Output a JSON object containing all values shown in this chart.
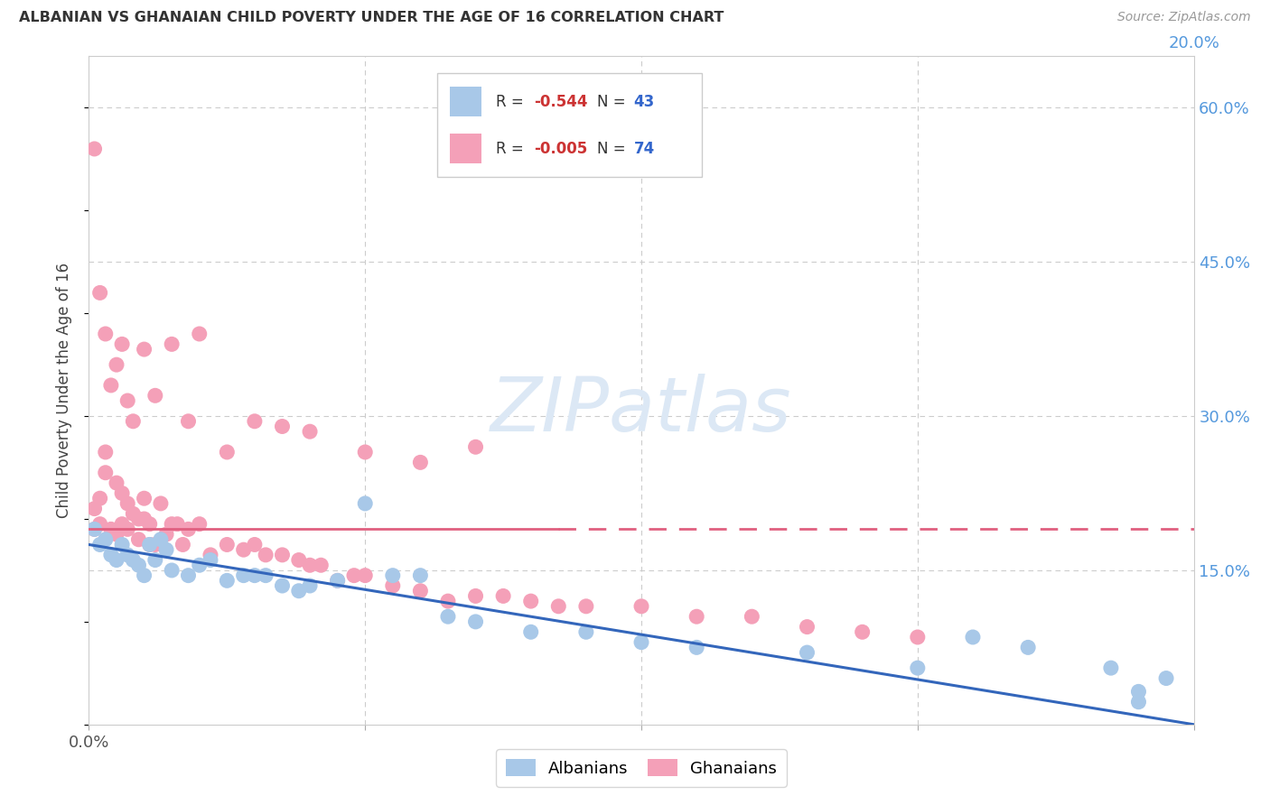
{
  "title": "ALBANIAN VS GHANAIAN CHILD POVERTY UNDER THE AGE OF 16 CORRELATION CHART",
  "source": "Source: ZipAtlas.com",
  "ylabel": "Child Poverty Under the Age of 16",
  "ytick_values": [
    0.15,
    0.3,
    0.45,
    0.6
  ],
  "ytick_labels": [
    "15.0%",
    "30.0%",
    "45.0%",
    "60.0%"
  ],
  "xlim": [
    0,
    0.2
  ],
  "ylim": [
    0,
    0.65
  ],
  "albanian_color": "#a8c8e8",
  "ghanaian_color": "#f4a0b8",
  "albanian_line_color": "#3366bb",
  "ghanaian_line_color": "#e06080",
  "grid_color": "#cccccc",
  "right_axis_color": "#5599dd",
  "watermark_color": "#dce8f5",
  "legend_R_color": "#cc3333",
  "legend_N_color": "#3366cc",
  "alb_R": -0.544,
  "alb_N": 43,
  "gha_R": -0.005,
  "gha_N": 74,
  "albanian_x": [
    0.001,
    0.002,
    0.003,
    0.004,
    0.005,
    0.006,
    0.007,
    0.008,
    0.009,
    0.01,
    0.011,
    0.012,
    0.013,
    0.014,
    0.015,
    0.018,
    0.02,
    0.022,
    0.025,
    0.028,
    0.03,
    0.032,
    0.035,
    0.038,
    0.04,
    0.045,
    0.05,
    0.055,
    0.06,
    0.065,
    0.07,
    0.08,
    0.09,
    0.1,
    0.11,
    0.13,
    0.15,
    0.16,
    0.17,
    0.185,
    0.19,
    0.19,
    0.195
  ],
  "albanian_y": [
    0.19,
    0.175,
    0.18,
    0.165,
    0.16,
    0.175,
    0.165,
    0.16,
    0.155,
    0.145,
    0.175,
    0.16,
    0.18,
    0.17,
    0.15,
    0.145,
    0.155,
    0.16,
    0.14,
    0.145,
    0.145,
    0.145,
    0.135,
    0.13,
    0.135,
    0.14,
    0.215,
    0.145,
    0.145,
    0.105,
    0.1,
    0.09,
    0.09,
    0.08,
    0.075,
    0.07,
    0.055,
    0.085,
    0.075,
    0.055,
    0.022,
    0.032,
    0.045
  ],
  "ghanaian_x": [
    0.001,
    0.001,
    0.002,
    0.002,
    0.003,
    0.003,
    0.004,
    0.005,
    0.005,
    0.006,
    0.006,
    0.007,
    0.007,
    0.008,
    0.009,
    0.009,
    0.01,
    0.01,
    0.011,
    0.011,
    0.012,
    0.013,
    0.014,
    0.015,
    0.016,
    0.017,
    0.018,
    0.02,
    0.022,
    0.025,
    0.028,
    0.03,
    0.032,
    0.035,
    0.038,
    0.04,
    0.042,
    0.045,
    0.048,
    0.05,
    0.055,
    0.06,
    0.065,
    0.07,
    0.075,
    0.08,
    0.085,
    0.09,
    0.1,
    0.11,
    0.12,
    0.13,
    0.14,
    0.15,
    0.001,
    0.002,
    0.003,
    0.004,
    0.005,
    0.006,
    0.007,
    0.008,
    0.01,
    0.012,
    0.015,
    0.018,
    0.02,
    0.025,
    0.03,
    0.035,
    0.04,
    0.05,
    0.06,
    0.07
  ],
  "ghanaian_y": [
    0.19,
    0.21,
    0.195,
    0.22,
    0.265,
    0.245,
    0.19,
    0.185,
    0.235,
    0.195,
    0.225,
    0.19,
    0.215,
    0.205,
    0.18,
    0.2,
    0.2,
    0.22,
    0.175,
    0.195,
    0.175,
    0.215,
    0.185,
    0.195,
    0.195,
    0.175,
    0.19,
    0.195,
    0.165,
    0.175,
    0.17,
    0.175,
    0.165,
    0.165,
    0.16,
    0.155,
    0.155,
    0.14,
    0.145,
    0.145,
    0.135,
    0.13,
    0.12,
    0.125,
    0.125,
    0.12,
    0.115,
    0.115,
    0.115,
    0.105,
    0.105,
    0.095,
    0.09,
    0.085,
    0.56,
    0.42,
    0.38,
    0.33,
    0.35,
    0.37,
    0.315,
    0.295,
    0.365,
    0.32,
    0.37,
    0.295,
    0.38,
    0.265,
    0.295,
    0.29,
    0.285,
    0.265,
    0.255,
    0.27
  ]
}
